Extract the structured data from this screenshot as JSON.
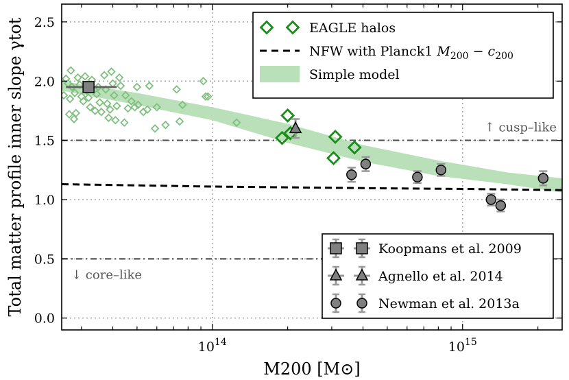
{
  "chart_data": {
    "type": "scatter",
    "title": "",
    "xlabel": "M200 [M⊙]",
    "ylabel": "Total matter profile inner slope γtot",
    "xscale": "log",
    "xlim": [
      25000000000000.0,
      2500000000000000.0
    ],
    "ylim": [
      -0.1,
      2.65
    ],
    "x_ticks": [
      {
        "value": 100000000000000.0,
        "base": "10",
        "exp": "14"
      },
      {
        "value": 1000000000000000.0,
        "base": "10",
        "exp": "15"
      }
    ],
    "y_ticks": [
      {
        "value": 0.0,
        "label": "0.0"
      },
      {
        "value": 0.5,
        "label": "0.5"
      },
      {
        "value": 1.0,
        "label": "1.0"
      },
      {
        "value": 1.5,
        "label": "1.5"
      },
      {
        "value": 2.0,
        "label": "2.0"
      },
      {
        "value": 2.5,
        "label": "2.5"
      }
    ],
    "grid": true,
    "reference_lines": [
      {
        "y": 1.5,
        "style": "dashdot",
        "annotation": "↑ cusp–like"
      },
      {
        "y": 0.5,
        "style": "dashdot",
        "annotation": "↓ core–like"
      }
    ],
    "series": [
      {
        "name": "EAGLE halos",
        "kind": "small",
        "color": "#7fbf7f",
        "points": [
          [
            25500000000000.0,
            1.88
          ],
          [
            26000000000000.0,
            2.02
          ],
          [
            26500000000000.0,
            1.98
          ],
          [
            26800000000000.0,
            1.72
          ],
          [
            27000000000000.0,
            1.85
          ],
          [
            27200000000000.0,
            2.09
          ],
          [
            27500000000000.0,
            1.95
          ],
          [
            28000000000000.0,
            1.68
          ],
          [
            28200000000000.0,
            1.9
          ],
          [
            28500000000000.0,
            1.73
          ],
          [
            29000000000000.0,
            2.03
          ],
          [
            29500000000000.0,
            1.97
          ],
          [
            30000000000000.0,
            1.87
          ],
          [
            30500000000000.0,
            1.83
          ],
          [
            31000000000000.0,
            2.04
          ],
          [
            31500000000000.0,
            1.92
          ],
          [
            32000000000000.0,
            1.86
          ],
          [
            32500000000000.0,
            1.78
          ],
          [
            33000000000000.0,
            2.01
          ],
          [
            34000000000000.0,
            1.75
          ],
          [
            34500000000000.0,
            1.89
          ],
          [
            35000000000000.0,
            1.95
          ],
          [
            35500000000000.0,
            1.82
          ],
          [
            36000000000000.0,
            1.74
          ],
          [
            37000000000000.0,
            2.05
          ],
          [
            37500000000000.0,
            1.93
          ],
          [
            38000000000000.0,
            1.81
          ],
          [
            38500000000000.0,
            1.69
          ],
          [
            39000000000000.0,
            1.76
          ],
          [
            39500000000000.0,
            2.08
          ],
          [
            40000000000000.0,
            1.98
          ],
          [
            40500000000000.0,
            1.88
          ],
          [
            41000000000000.0,
            1.67
          ],
          [
            41500000000000.0,
            1.79
          ],
          [
            42500000000000.0,
            2.03
          ],
          [
            43000000000000.0,
            1.96
          ],
          [
            44500000000000.0,
            1.65
          ],
          [
            45000000000000.0,
            1.88
          ],
          [
            46000000000000.0,
            1.77
          ],
          [
            47500000000000.0,
            1.83
          ],
          [
            49000000000000.0,
            1.78
          ],
          [
            50000000000000.0,
            1.95
          ],
          [
            50500000000000.0,
            1.8
          ],
          [
            53000000000000.0,
            1.74
          ],
          [
            55000000000000.0,
            1.76
          ],
          [
            56000000000000.0,
            1.96
          ],
          [
            59000000000000.0,
            1.6
          ],
          [
            60000000000000.0,
            1.78
          ],
          [
            65000000000000.0,
            1.63
          ],
          [
            72000000000000.0,
            1.93
          ],
          [
            74000000000000.0,
            1.66
          ],
          [
            76000000000000.0,
            1.8
          ],
          [
            92000000000000.0,
            2.0
          ],
          [
            94000000000000.0,
            1.87
          ],
          [
            96000000000000.0,
            1.87
          ],
          [
            125000000000000.0,
            1.65
          ]
        ]
      },
      {
        "name": "EAGLE halos",
        "kind": "large",
        "color": "#1a8c1a",
        "points": [
          [
            190000000000000.0,
            1.52
          ],
          [
            200000000000000.0,
            1.71
          ],
          [
            205000000000000.0,
            1.56
          ],
          [
            305000000000000.0,
            1.35
          ],
          [
            310000000000000.0,
            1.53
          ],
          [
            370000000000000.0,
            1.44
          ]
        ]
      },
      {
        "name": "Koopmans et al. 2009",
        "marker": "square",
        "color": "#808080",
        "points": [
          {
            "x": 32000000000000.0,
            "y": 1.95,
            "xerr": [
              6000000000000.0,
              9500000000000.0
            ],
            "yerr": 0.03
          }
        ]
      },
      {
        "name": "Agnello et al. 2014",
        "marker": "triangle",
        "color": "#808080",
        "points": [
          {
            "x": 215000000000000.0,
            "y": 1.6,
            "yerr": 0.08
          }
        ]
      },
      {
        "name": "Newman et al. 2013a",
        "marker": "circle",
        "color": "#808080",
        "points": [
          {
            "x": 360000000000000.0,
            "y": 1.21,
            "yerr": 0.06
          },
          {
            "x": 410000000000000.0,
            "y": 1.3,
            "yerr": 0.06
          },
          {
            "x": 660000000000000.0,
            "y": 1.19,
            "yerr": 0.05
          },
          {
            "x": 820000000000000.0,
            "y": 1.25,
            "yerr": 0.05
          },
          {
            "x": 1300000000000000.0,
            "y": 1.0,
            "yerr": 0.05
          },
          {
            "x": 1420000000000000.0,
            "y": 0.95,
            "yerr": 0.05
          },
          {
            "x": 2100000000000000.0,
            "y": 1.18,
            "yerr": 0.06
          }
        ]
      },
      {
        "name": "NFW with Planck1 M200 − c200",
        "kind": "line",
        "style": "dashed",
        "color": "#000000",
        "x": [
          25000000000000.0,
          100000000000000.0,
          500000000000000.0,
          1000000000000000.0,
          2500000000000000.0
        ],
        "y": [
          1.13,
          1.11,
          1.095,
          1.09,
          1.08
        ]
      },
      {
        "name": "Simple model",
        "kind": "band",
        "color": "#b9e0b9",
        "x": [
          25000000000000.0,
          50000000000000.0,
          100000000000000.0,
          200000000000000.0,
          400000000000000.0,
          800000000000000.0,
          1500000000000000.0,
          2500000000000000.0
        ],
        "y_upper": [
          2.0,
          1.9,
          1.78,
          1.64,
          1.46,
          1.33,
          1.23,
          1.18
        ],
        "y_lower": [
          1.92,
          1.8,
          1.67,
          1.48,
          1.32,
          1.2,
          1.13,
          1.06
        ]
      }
    ],
    "legends": [
      {
        "placement": "top-right",
        "entries": [
          {
            "symbol": "diamond",
            "label_parts": [
              {
                "t": "EAGLE halos"
              }
            ]
          },
          {
            "symbol": "dashed",
            "label_parts": [
              {
                "t": "NFW with Planck1 "
              },
              {
                "t": "M",
                "style": "italic"
              },
              {
                "t": "200",
                "style": "sub"
              },
              {
                "t": " − "
              },
              {
                "t": "c",
                "style": "italic"
              },
              {
                "t": "200",
                "style": "sub"
              }
            ]
          },
          {
            "symbol": "band",
            "label_parts": [
              {
                "t": "Simple model"
              }
            ]
          }
        ]
      },
      {
        "placement": "bottom-right",
        "entries": [
          {
            "symbol": "square",
            "label_parts": [
              {
                "t": "Koopmans et al. 2009"
              }
            ]
          },
          {
            "symbol": "triangle",
            "label_parts": [
              {
                "t": "Agnello et al. 2014"
              }
            ]
          },
          {
            "symbol": "circle",
            "label_parts": [
              {
                "t": "Newman et al. 2013a"
              }
            ]
          }
        ]
      }
    ]
  }
}
